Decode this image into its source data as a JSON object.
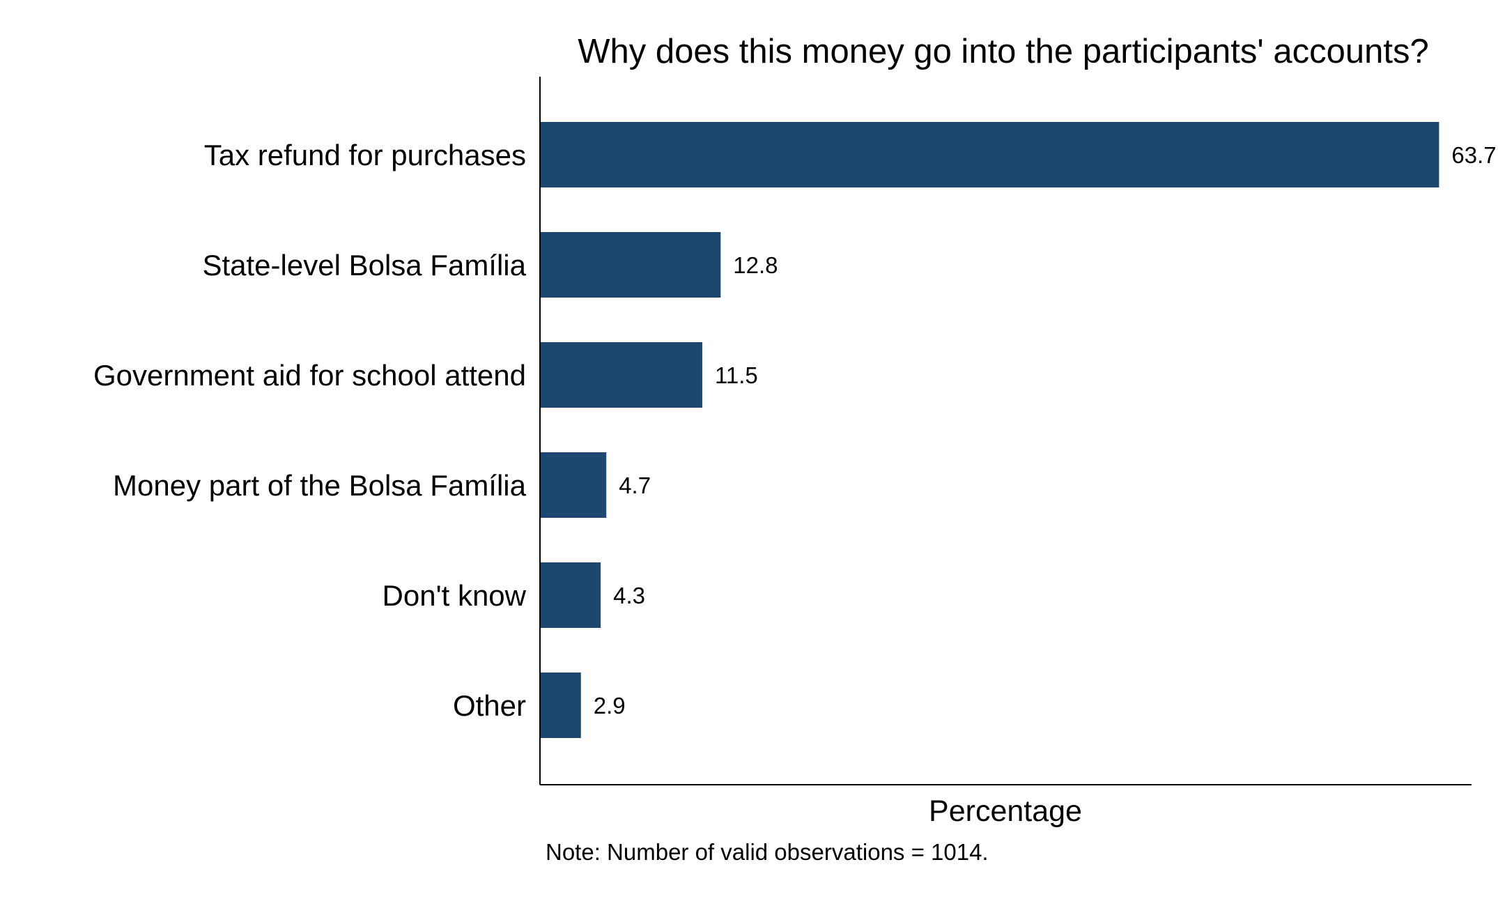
{
  "chart_data": {
    "type": "bar",
    "orientation": "horizontal",
    "title": "Why does this money go into the participants' accounts?",
    "xlabel": "Percentage",
    "ylabel": "",
    "note": "Note: Number of valid observations = 1014.",
    "categories": [
      "Tax refund for purchases",
      "State-level Bolsa Família",
      "Government aid for school attend",
      "Money part of the Bolsa Família",
      "Don't know",
      "Other"
    ],
    "values": [
      63.7,
      12.8,
      11.5,
      4.7,
      4.3,
      2.9
    ],
    "value_labels": [
      "63.7",
      "12.8",
      "11.5",
      "4.7",
      "4.3",
      "2.9"
    ],
    "xlim": [
      0,
      66
    ],
    "bar_color": "#1d476e",
    "grid": false,
    "legend": "none"
  }
}
